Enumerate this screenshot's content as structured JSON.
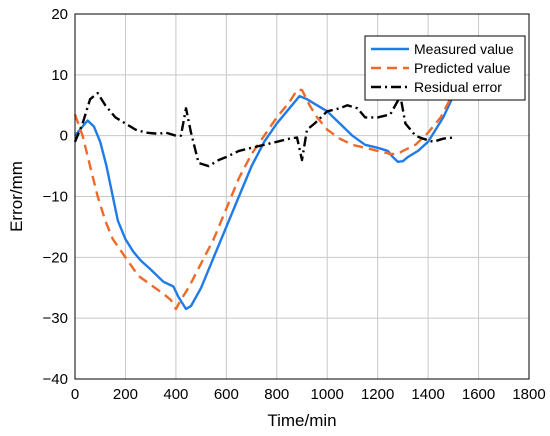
{
  "chart_data": {
    "type": "line",
    "xlabel": "Time/min",
    "ylabel": "Error/mm",
    "xlim": [
      0,
      1800
    ],
    "ylim": [
      -40,
      20
    ],
    "xticks": [
      0,
      200,
      400,
      600,
      800,
      1000,
      1200,
      1400,
      1600,
      1800
    ],
    "yticks": [
      -40,
      -30,
      -20,
      -10,
      0,
      10,
      20
    ],
    "xtick_labels": [
      "0",
      "200",
      "400",
      "600",
      "800",
      "1000",
      "1200",
      "1400",
      "1600",
      "1800"
    ],
    "ytick_labels": [
      "−40",
      "−30",
      "−20",
      "−10",
      "0",
      "10",
      "20"
    ],
    "grid": true,
    "legend_position": "top-right",
    "series": [
      {
        "name": "Measured value",
        "color": "#1f7be6",
        "dash": "solid",
        "points": [
          [
            0,
            0
          ],
          [
            20,
            1
          ],
          [
            50,
            2.5
          ],
          [
            75,
            1.5
          ],
          [
            100,
            -1
          ],
          [
            125,
            -5
          ],
          [
            150,
            -10
          ],
          [
            170,
            -14
          ],
          [
            200,
            -17
          ],
          [
            230,
            -19
          ],
          [
            260,
            -20.5
          ],
          [
            300,
            -22
          ],
          [
            350,
            -24
          ],
          [
            390,
            -24.8
          ],
          [
            410,
            -26.5
          ],
          [
            440,
            -28.5
          ],
          [
            460,
            -28
          ],
          [
            500,
            -25
          ],
          [
            550,
            -20
          ],
          [
            600,
            -15
          ],
          [
            650,
            -10
          ],
          [
            700,
            -5
          ],
          [
            750,
            -1
          ],
          [
            800,
            2
          ],
          [
            850,
            4.5
          ],
          [
            890,
            6.5
          ],
          [
            920,
            6
          ],
          [
            960,
            5
          ],
          [
            1000,
            4
          ],
          [
            1050,
            2
          ],
          [
            1100,
            0
          ],
          [
            1150,
            -1.5
          ],
          [
            1200,
            -2
          ],
          [
            1240,
            -2.5
          ],
          [
            1260,
            -3.5
          ],
          [
            1280,
            -4.3
          ],
          [
            1300,
            -4.2
          ],
          [
            1320,
            -3.5
          ],
          [
            1360,
            -2.5
          ],
          [
            1400,
            -1
          ],
          [
            1430,
            1
          ],
          [
            1460,
            3
          ],
          [
            1500,
            6.5
          ]
        ]
      },
      {
        "name": "Predicted value",
        "color": "#ef6a28",
        "dash": "dashed",
        "points": [
          [
            0,
            3.5
          ],
          [
            30,
            0
          ],
          [
            60,
            -5
          ],
          [
            90,
            -10
          ],
          [
            120,
            -14
          ],
          [
            150,
            -17
          ],
          [
            200,
            -20
          ],
          [
            250,
            -23
          ],
          [
            300,
            -24.5
          ],
          [
            350,
            -26
          ],
          [
            380,
            -27
          ],
          [
            400,
            -28.5
          ],
          [
            420,
            -27
          ],
          [
            450,
            -25
          ],
          [
            500,
            -21
          ],
          [
            550,
            -17
          ],
          [
            600,
            -12
          ],
          [
            650,
            -7
          ],
          [
            700,
            -3
          ],
          [
            750,
            0
          ],
          [
            800,
            3
          ],
          [
            850,
            5.5
          ],
          [
            880,
            7.5
          ],
          [
            900,
            7.5
          ],
          [
            930,
            5
          ],
          [
            960,
            3
          ],
          [
            1000,
            1
          ],
          [
            1050,
            -0.5
          ],
          [
            1100,
            -1.5
          ],
          [
            1150,
            -2
          ],
          [
            1200,
            -2.5
          ],
          [
            1250,
            -3
          ],
          [
            1280,
            -3
          ],
          [
            1300,
            -2.5
          ],
          [
            1350,
            -1.5
          ],
          [
            1400,
            0.5
          ],
          [
            1450,
            3
          ],
          [
            1500,
            7
          ]
        ]
      },
      {
        "name": "Residual error",
        "color": "#000000",
        "dash": "dashdot",
        "points": [
          [
            0,
            -1
          ],
          [
            30,
            2
          ],
          [
            60,
            6
          ],
          [
            90,
            7
          ],
          [
            120,
            5
          ],
          [
            160,
            3
          ],
          [
            200,
            2
          ],
          [
            240,
            1
          ],
          [
            280,
            0.5
          ],
          [
            330,
            0.3
          ],
          [
            360,
            0.5
          ],
          [
            400,
            0
          ],
          [
            420,
            0
          ],
          [
            440,
            4.5
          ],
          [
            460,
            0.5
          ],
          [
            490,
            -4.5
          ],
          [
            530,
            -5
          ],
          [
            570,
            -4
          ],
          [
            600,
            -3.5
          ],
          [
            650,
            -2.5
          ],
          [
            700,
            -2
          ],
          [
            750,
            -1.5
          ],
          [
            800,
            -1
          ],
          [
            850,
            -0.5
          ],
          [
            880,
            -0.3
          ],
          [
            900,
            -4
          ],
          [
            920,
            1
          ],
          [
            950,
            2
          ],
          [
            1000,
            4
          ],
          [
            1050,
            4.5
          ],
          [
            1080,
            5
          ],
          [
            1120,
            4.5
          ],
          [
            1150,
            3
          ],
          [
            1200,
            3
          ],
          [
            1250,
            3.5
          ],
          [
            1290,
            6.5
          ],
          [
            1310,
            2
          ],
          [
            1350,
            0
          ],
          [
            1380,
            -0.5
          ],
          [
            1420,
            -1
          ],
          [
            1460,
            -0.5
          ],
          [
            1500,
            -0.3
          ]
        ]
      }
    ]
  }
}
